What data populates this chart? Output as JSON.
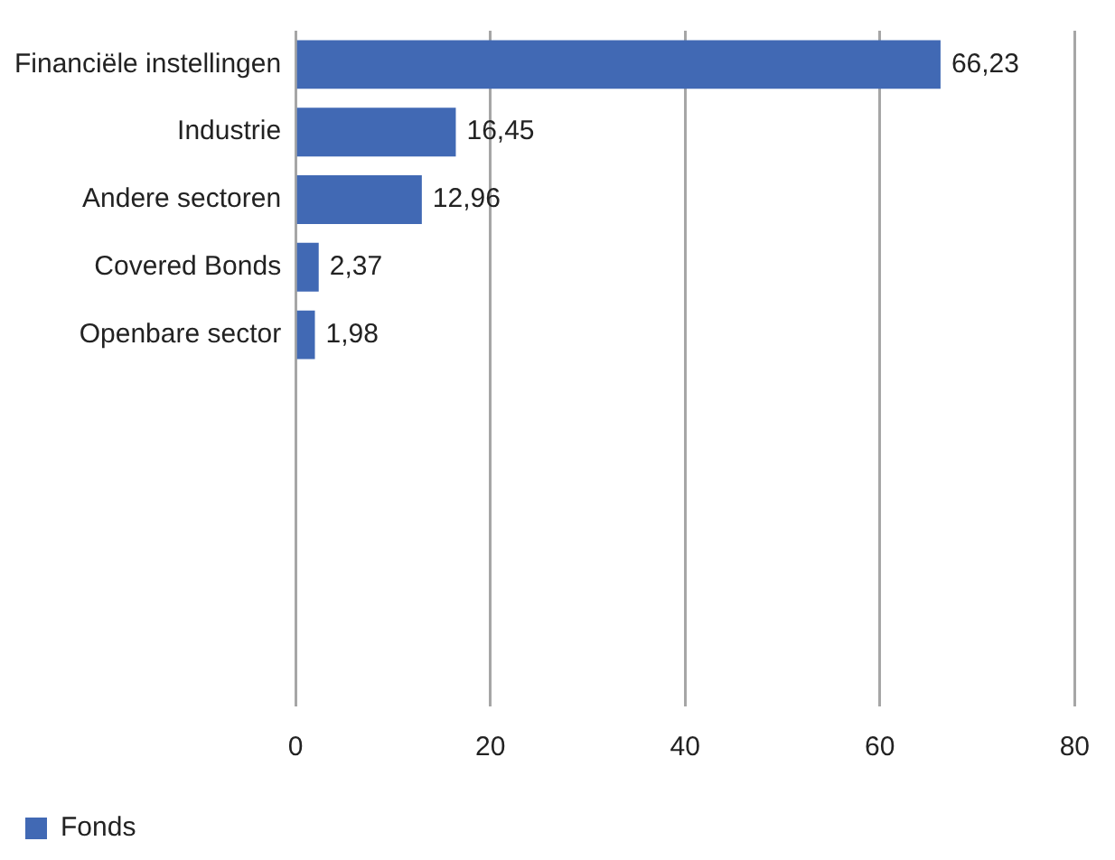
{
  "chart_data": {
    "type": "bar",
    "orientation": "horizontal",
    "categories": [
      "Financiële instellingen",
      "Industrie",
      "Andere sectoren",
      "Covered Bonds",
      "Openbare sector",
      null,
      null,
      null,
      null,
      null
    ],
    "series": [
      {
        "name": "Fonds",
        "color": "#4169b4",
        "values": [
          66.23,
          16.45,
          12.96,
          2.37,
          1.98,
          null,
          null,
          null,
          null,
          null
        ]
      }
    ],
    "value_labels": [
      "66,23",
      "16,45",
      "12,96",
      "2,37",
      "1,98",
      null,
      null,
      null,
      null,
      null
    ],
    "xlim": [
      0,
      80
    ],
    "xticks": [
      0,
      20,
      40,
      60,
      80
    ],
    "grid": "x",
    "legend": "bottom left"
  }
}
